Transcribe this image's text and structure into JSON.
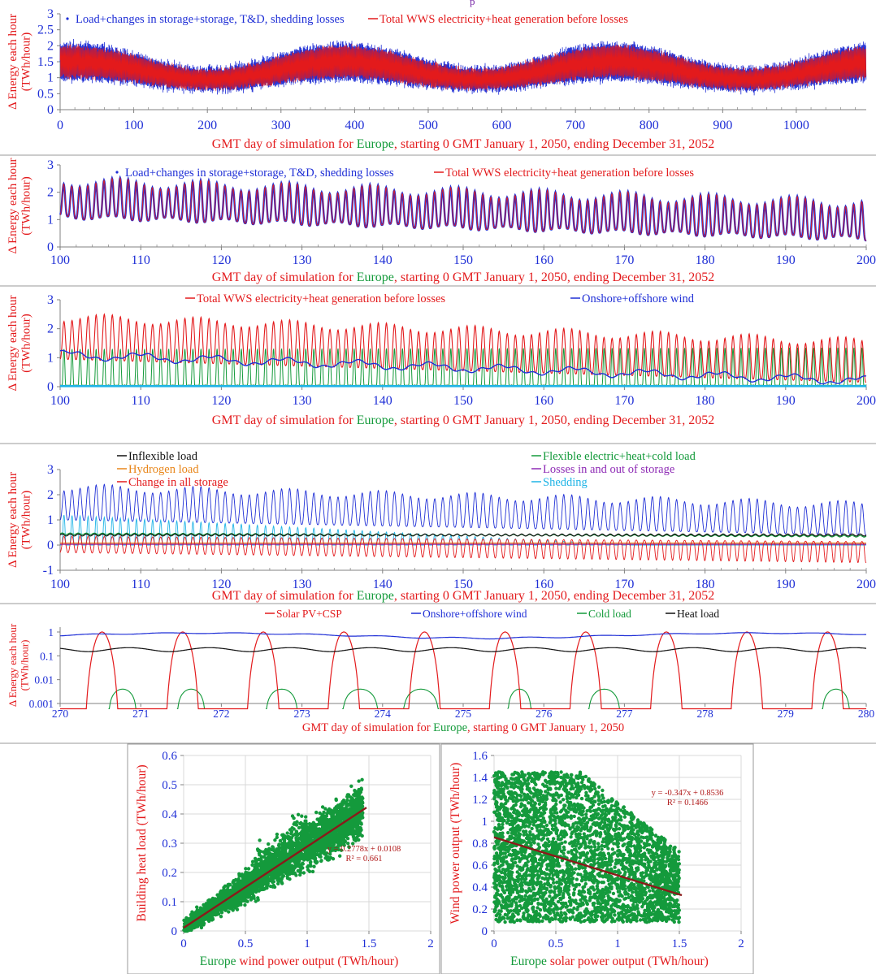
{
  "header_fragment": "p",
  "colors": {
    "blue": "#1f2fd6",
    "red": "#e31a1c",
    "green": "#139a3a",
    "black": "#111111",
    "orange": "#e8861a",
    "purple": "#8e2bb5",
    "cyan": "#1fb4e6",
    "scatter": "#149a3c",
    "trend": "#8b1a1a"
  },
  "chart_data": [
    {
      "type": "line",
      "ylabel": "Δ Energy each hour (TWh/hour)",
      "xlabel_parts": [
        "GMT day of simulation for ",
        "Europe",
        ", starting 0 GMT January 1, 2050, ending December 31, 2052"
      ],
      "xlim": [
        0,
        1095
      ],
      "ylim": [
        0,
        3
      ],
      "xticks": [
        "0",
        "100",
        "200",
        "300",
        "400",
        "500",
        "600",
        "700",
        "800",
        "900",
        "1000"
      ],
      "yticks": [
        "0",
        "0.5",
        "1",
        "1.5",
        "2",
        "2.5",
        "3"
      ],
      "series": [
        {
          "name": "Load+changes in storage+storage, T&D, shedding losses",
          "color": "blue",
          "envelope_min": 0.2,
          "envelope_max": 2.5
        },
        {
          "name": "Total WWS electricity+heat generation before losses",
          "color": "red",
          "envelope_min": 0.35,
          "envelope_max": 2.2
        }
      ]
    },
    {
      "type": "line",
      "ylabel": "Δ Energy each hour (TWh/hour)",
      "xlabel_parts": [
        "GMT day of simulation for ",
        "Europe",
        ", starting 0 GMT January 1, 2050, ending December 31, 2052"
      ],
      "xlim": [
        100,
        200
      ],
      "ylim": [
        0,
        3
      ],
      "xticks": [
        "100",
        "110",
        "120",
        "130",
        "140",
        "150",
        "160",
        "170",
        "180",
        "190",
        "200"
      ],
      "yticks": [
        "0",
        "1",
        "2",
        "3"
      ],
      "series": [
        {
          "name": "Load+changes in storage+storage, T&D, shedding losses",
          "color": "blue",
          "daily_peak_start": 2.4,
          "daily_peak_end": 1.6,
          "daily_trough_start": 1.1,
          "daily_trough_end": 0.3
        },
        {
          "name": "Total WWS electricity+heat generation before losses",
          "color": "red",
          "daily_peak_start": 2.4,
          "daily_peak_end": 1.6,
          "daily_trough_start": 1.1,
          "daily_trough_end": 0.3
        }
      ]
    },
    {
      "type": "line",
      "ylabel": "Δ Energy each hour (TWh/hour)",
      "xlabel_parts": [
        "GMT day of simulation for ",
        "Europe",
        ", starting 0 GMT January 1, 2050, ending December 31, 2052"
      ],
      "xlim": [
        100,
        200
      ],
      "ylim": [
        0,
        3
      ],
      "xticks": [
        "100",
        "110",
        "120",
        "130",
        "140",
        "150",
        "160",
        "170",
        "180",
        "190",
        "200"
      ],
      "yticks": [
        "0",
        "1",
        "2",
        "3"
      ],
      "series": [
        {
          "name": "Total WWS electricity+heat generation before losses",
          "color": "red",
          "daily_peak_start": 2.4,
          "daily_peak_end": 1.55,
          "daily_trough_start": 0.95,
          "daily_trough_end": 0.15
        },
        {
          "name": "Onshore+offshore wind",
          "color": "blue",
          "start": 1.1,
          "end": 0.2
        },
        {
          "name": "",
          "color": "green",
          "daily_peak_start": 1.3,
          "daily_peak_end": 1.35,
          "daily_trough": 0.05
        },
        {
          "name": "",
          "color": "cyan",
          "constant": 0.02
        }
      ]
    },
    {
      "type": "line",
      "ylabel": "Δ Energy each hour (TWh/hour)",
      "xlabel_parts": [
        "GMT day of simulation for ",
        "Europe",
        ", starting 0 GMT January 1, 2050, ending December 31, 2052"
      ],
      "xlim": [
        100,
        200
      ],
      "ylim": [
        -1,
        3
      ],
      "xticks": [
        "100",
        "110",
        "120",
        "130",
        "140",
        "150",
        "160",
        "170",
        "180",
        "190",
        "200"
      ],
      "yticks": [
        "-1",
        "0",
        "1",
        "2",
        "3"
      ],
      "series": [
        {
          "name": "Inflexible load",
          "color": "black",
          "constant": 0.4
        },
        {
          "name": "Hydrogen load",
          "color": "orange",
          "constant": 0.08
        },
        {
          "name": "Change in all storage",
          "color": "red",
          "daily_peak": 0.35,
          "daily_trough_start": -0.3,
          "daily_trough_end": -0.7
        },
        {
          "name": "Flexible electric+heat+cold load",
          "color": "green",
          "constant": 0.45
        },
        {
          "name": "Losses in and out of storage",
          "color": "purple",
          "constant": 0.03
        },
        {
          "name": "Shedding",
          "color": "cyan",
          "daily_peak_start": 1.2,
          "daily_peak_end": 0.0
        },
        {
          "name": "",
          "color": "blue",
          "daily_peak_start": 2.3,
          "daily_peak_end": 1.6,
          "daily_trough_start": 1.0,
          "daily_trough_end": 0.4
        }
      ]
    },
    {
      "type": "line",
      "scale": "log",
      "ylabel": "Δ Energy each hour (TWh/hour)",
      "xlabel_parts": [
        "GMT day of simulation for ",
        "Europe",
        ", starting 0 GMT January 1, 2050"
      ],
      "xlim": [
        270,
        280
      ],
      "ylim": [
        0.001,
        1.6
      ],
      "xticks": [
        "270",
        "271",
        "272",
        "273",
        "274",
        "275",
        "276",
        "277",
        "278",
        "279",
        "280"
      ],
      "yticks": [
        "0.001",
        "0.01",
        "0.1",
        "1"
      ],
      "series": [
        {
          "name": "Solar PV+CSP",
          "color": "red",
          "daily_peak": 1.0
        },
        {
          "name": "Onshore+offshore wind",
          "color": "blue",
          "min": 0.55,
          "max": 0.9
        },
        {
          "name": "Cold load",
          "color": "green",
          "peak": 0.004
        },
        {
          "name": "Heat load",
          "color": "black",
          "min": 0.15,
          "max": 0.22
        }
      ]
    },
    {
      "type": "scatter",
      "xlabel_parts": [
        "Europe",
        " wind power output (TWh/hour)"
      ],
      "ylabel": "Building heat load (TWh/hour)",
      "xlim": [
        0,
        2
      ],
      "ylim": [
        0,
        0.6
      ],
      "xticks": [
        "0",
        "0.5",
        "1",
        "1.5",
        "2"
      ],
      "yticks": [
        "0",
        "0.1",
        "0.2",
        "0.3",
        "0.4",
        "0.5",
        "0.6"
      ],
      "trend_equation": "y = 0.2778x + 0.0108",
      "r_squared": "R² = 0.661",
      "slope": 0.2778,
      "intercept": 0.0108,
      "trend_x_range": [
        0,
        1.48
      ]
    },
    {
      "type": "scatter",
      "xlabel_parts": [
        "Europe",
        " solar power output (TWh/hour)"
      ],
      "ylabel": "Wind power output (TWh/hour)",
      "xlim": [
        0,
        2
      ],
      "ylim": [
        0,
        1.6
      ],
      "xticks": [
        "0",
        "0.5",
        "1",
        "1.5",
        "2"
      ],
      "yticks": [
        "0",
        "0.2",
        "0.4",
        "0.6",
        "0.8",
        "1",
        "1.2",
        "1.4",
        "1.6"
      ],
      "trend_equation": "y = -0.347x + 0.8536",
      "r_squared": "R² = 0.1466",
      "slope": -0.347,
      "intercept": 0.8536,
      "trend_x_range": [
        0,
        1.52
      ]
    }
  ]
}
